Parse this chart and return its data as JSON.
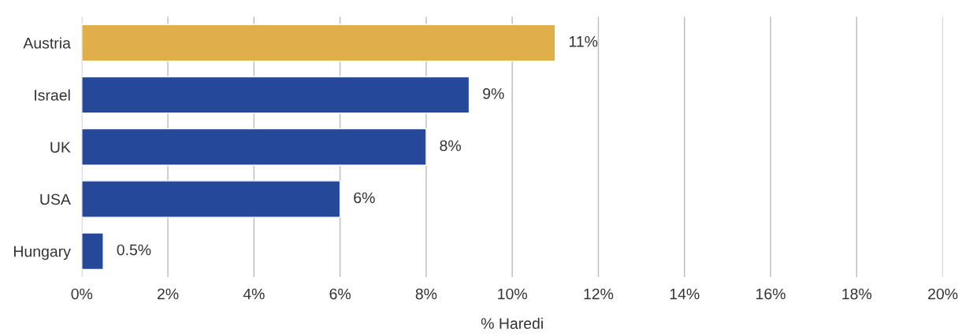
{
  "chart_data": {
    "type": "bar",
    "orientation": "horizontal",
    "xlabel": "% Haredi",
    "categories": [
      "Austria",
      "Israel",
      "UK",
      "USA",
      "Hungary"
    ],
    "values": [
      11,
      9,
      8,
      6,
      0.5
    ],
    "colors": [
      "#e0ae4a",
      "#26489a",
      "#26489a",
      "#26489a",
      "#26489a"
    ],
    "value_labels": [
      "11%",
      "9%",
      "8%",
      "6%",
      "0.5%"
    ],
    "xlim": [
      0,
      20
    ],
    "xticks": [
      {
        "value": 0,
        "label": "0%"
      },
      {
        "value": 2,
        "label": "2%"
      },
      {
        "value": 4,
        "label": "4%"
      },
      {
        "value": 6,
        "label": "6%"
      },
      {
        "value": 8,
        "label": "8%"
      },
      {
        "value": 10,
        "label": "10%"
      },
      {
        "value": 12,
        "label": "12%"
      },
      {
        "value": 14,
        "label": "14%"
      },
      {
        "value": 16,
        "label": "16%"
      },
      {
        "value": 18,
        "label": "18%"
      },
      {
        "value": 20,
        "label": "20%"
      }
    ],
    "grid": "x",
    "legend": false
  }
}
